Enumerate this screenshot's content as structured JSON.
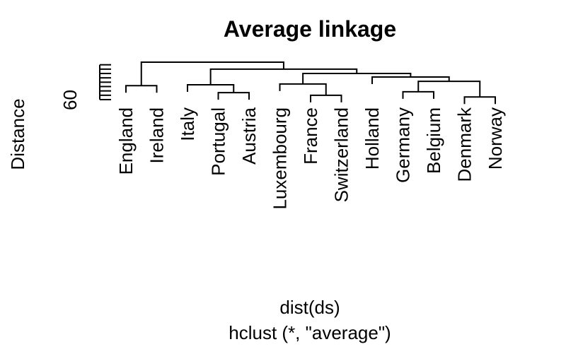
{
  "chart_data": {
    "type": "dendrogram",
    "title": "Average linkage",
    "ylabel": "Distance",
    "xlabel": "dist(ds)",
    "sub": "hclust (*, \"average\")",
    "yticks": [
      "60"
    ],
    "leaves": [
      "England",
      "Ireland",
      "Italy",
      "Portugal",
      "Austria",
      "Luxembourg",
      "France",
      "Switzerland",
      "Holland",
      "Germany",
      "Belgium",
      "Denmark",
      "Norway"
    ],
    "merges": [
      {
        "left": "England",
        "right": "Ireland",
        "height": 56
      },
      {
        "left": "Portugal",
        "right": "Austria",
        "height": 48
      },
      {
        "left": "Italy",
        "right": "Portugal+Austria",
        "height": 57
      },
      {
        "left": "France",
        "right": "Switzerland",
        "height": 45
      },
      {
        "left": "Luxembourg",
        "right": "France+Switzerland",
        "height": 58
      },
      {
        "left": "Germany",
        "right": "Belgium",
        "height": 49
      },
      {
        "left": "Denmark",
        "right": "Norway",
        "height": 43
      },
      {
        "left": "Germany+Belgium",
        "right": "Denmark+Norway",
        "height": 61
      },
      {
        "left": "Holland",
        "right": "Germany+Belgium+Denmark+Norway",
        "height": 66
      },
      {
        "left": "Luxembourg+France+Switzerland",
        "right": "Holland+Germany+Belgium+Denmark+Norway",
        "height": 70
      },
      {
        "left": "Italy+Portugal+Austria",
        "right": "Luxembourg+France+Switzerland+Holland+Germany+Belgium+Denmark+Norway",
        "height": 75
      },
      {
        "left": "England+Ireland",
        "right": "Italy+Portugal+Austria+Luxembourg+France+Switzerland+Holland+Germany+Belgium+Denmark+Norway",
        "height": 83
      }
    ]
  }
}
